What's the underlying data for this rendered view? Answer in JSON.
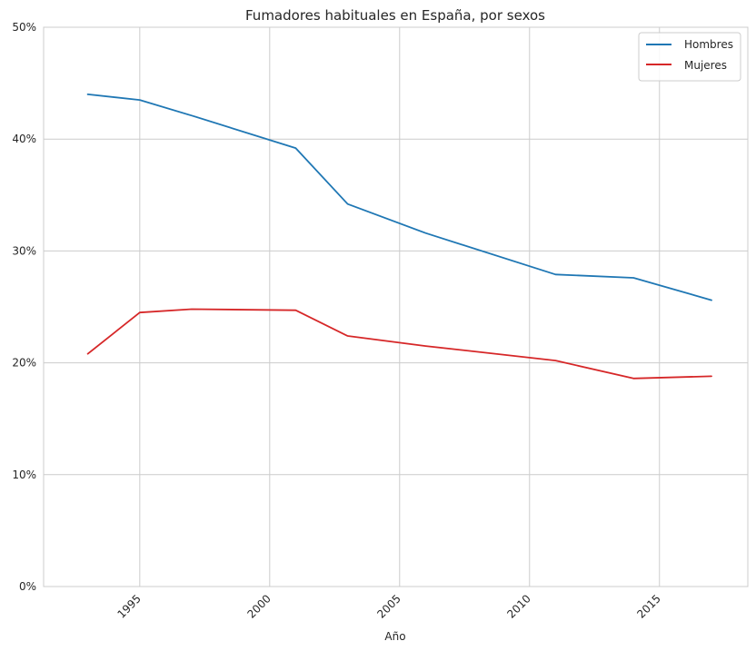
{
  "chart_data": {
    "type": "line",
    "title": "Fumadores habituales en España, por sexos",
    "xlabel": "Año",
    "ylabel": "",
    "x_ticks": [
      1995,
      2000,
      2005,
      2010,
      2015
    ],
    "y_ticks": [
      "0%",
      "10%",
      "20%",
      "30%",
      "40%",
      "50%"
    ],
    "y_tick_values": [
      0,
      10,
      20,
      30,
      40,
      50
    ],
    "xlim": [
      1991.3,
      2018.4
    ],
    "ylim": [
      0,
      50
    ],
    "grid": true,
    "legend_position": "top-right",
    "series": [
      {
        "name": "Hombres",
        "color": "#1f77b4",
        "x": [
          1993,
          1995,
          1997,
          2001,
          2003,
          2006,
          2011,
          2014,
          2017
        ],
        "y": [
          44.0,
          43.5,
          42.1,
          39.2,
          34.2,
          31.6,
          27.9,
          27.6,
          25.6
        ]
      },
      {
        "name": "Mujeres",
        "color": "#d62728",
        "x": [
          1993,
          1995,
          1997,
          2001,
          2003,
          2006,
          2011,
          2014,
          2017
        ],
        "y": [
          20.8,
          24.5,
          24.8,
          24.7,
          22.4,
          21.5,
          20.2,
          18.6,
          18.8
        ]
      }
    ]
  }
}
